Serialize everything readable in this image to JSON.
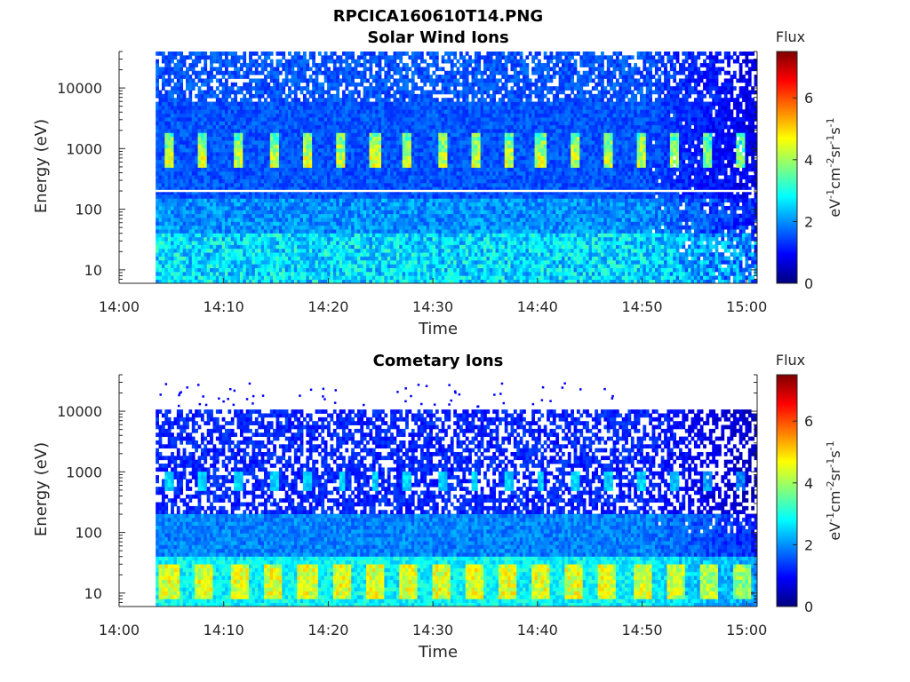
{
  "figure": {
    "title": "RPCICA160610T14.PNG"
  },
  "colormap": {
    "name": "jet",
    "stops": [
      "#00007f",
      "#0000ff",
      "#007fff",
      "#00ffff",
      "#7fff7f",
      "#ffff00",
      "#ff7f00",
      "#ff0000",
      "#7f0000"
    ]
  },
  "chart_data": [
    {
      "type": "heatmap",
      "title": "Solar Wind Ions",
      "xlabel": "Time",
      "ylabel": "Energy (eV)",
      "x_range": [
        "14:00",
        "15:01"
      ],
      "x_ticks": [
        "14:00",
        "14:10",
        "14:20",
        "14:30",
        "14:40",
        "14:50",
        "15:00"
      ],
      "y_scale": "log",
      "y_range": [
        6,
        40000
      ],
      "y_ticks": [
        "10",
        "100",
        "1000",
        "10000"
      ],
      "data_start_time": "14:03.5",
      "data_end_time": "15:01",
      "pulse_times": [
        "14:04.8",
        "14:08",
        "14:11.5",
        "14:14.8",
        "14:18",
        "14:21.3",
        "14:24.5",
        "14:27.6",
        "14:30.9",
        "14:34",
        "14:37.2",
        "14:40.3",
        "14:43.5",
        "14:46.7",
        "14:50",
        "14:53.2",
        "14:56.3",
        "14:59.5"
      ],
      "pulse_energy_eV": 700,
      "gap_energy_eV": 200,
      "colorbar": {
        "label": "Flux",
        "units": "eV-1cm-2sr-1s-1",
        "range": [
          0,
          7.5
        ],
        "ticks": [
          "0",
          "2",
          "4",
          "6"
        ]
      }
    },
    {
      "type": "heatmap",
      "title": "Cometary Ions",
      "xlabel": "Time",
      "ylabel": "Energy (eV)",
      "x_range": [
        "14:00",
        "15:01"
      ],
      "x_ticks": [
        "14:00",
        "14:10",
        "14:20",
        "14:30",
        "14:40",
        "14:50",
        "15:00"
      ],
      "y_scale": "log",
      "y_range": [
        6,
        40000
      ],
      "y_ticks": [
        "10",
        "100",
        "1000",
        "10000"
      ],
      "data_start_time": "14:03.5",
      "data_end_time": "15:01",
      "upper_cutoff_eV": 11000,
      "pulse_times": [
        "14:04.8",
        "14:08",
        "14:11.5",
        "14:14.8",
        "14:18",
        "14:21.3",
        "14:24.5",
        "14:27.6",
        "14:30.9",
        "14:34",
        "14:37.2",
        "14:40.3",
        "14:43.5",
        "14:46.7",
        "14:50",
        "14:53.2",
        "14:56.3",
        "14:59.5"
      ],
      "pulse_energy_eV": 700,
      "low_energy_band_eV": [
        8,
        30
      ],
      "colorbar": {
        "label": "Flux",
        "units": "eV-1cm-2sr-1s-1",
        "range": [
          0,
          7.5
        ],
        "ticks": [
          "0",
          "2",
          "4",
          "6"
        ]
      }
    }
  ]
}
